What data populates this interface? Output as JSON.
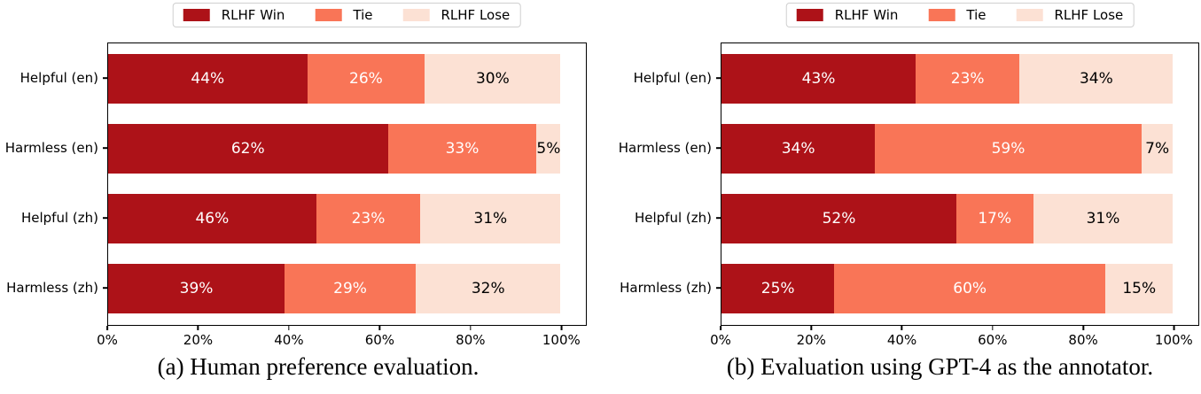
{
  "chart_data": [
    {
      "type": "bar",
      "orientation": "horizontal",
      "stacked": true,
      "title": "(a) Human preference evaluation.",
      "categories": [
        "Helpful (en)",
        "Harmless (en)",
        "Helpful (zh)",
        "Harmless (zh)"
      ],
      "series": [
        {
          "name": "RLHF Win",
          "color": "#ad1218",
          "label_color": "#ffffff",
          "values": [
            44,
            62,
            46,
            39
          ]
        },
        {
          "name": "Tie",
          "color": "#f97557",
          "label_color": "#ffffff",
          "values": [
            26,
            33,
            23,
            29
          ]
        },
        {
          "name": "RLHF Lose",
          "color": "#fce1d4",
          "label_color": "#000000",
          "values": [
            30,
            5,
            31,
            32
          ]
        }
      ],
      "value_label_suffix": "%",
      "x_ticks": [
        0,
        20,
        40,
        60,
        80,
        100
      ],
      "x_tick_labels": [
        "0%",
        "20%",
        "40%",
        "60%",
        "80%",
        "100%"
      ],
      "xlim": [
        0,
        105.6
      ],
      "grid": false,
      "legend_position": "top-center"
    },
    {
      "type": "bar",
      "orientation": "horizontal",
      "stacked": true,
      "title": "(b) Evaluation using GPT-4 as the annotator.",
      "categories": [
        "Helpful (en)",
        "Harmless (en)",
        "Helpful (zh)",
        "Harmless (zh)"
      ],
      "series": [
        {
          "name": "RLHF Win",
          "color": "#ad1218",
          "label_color": "#ffffff",
          "values": [
            43,
            34,
            52,
            25
          ]
        },
        {
          "name": "Tie",
          "color": "#f97557",
          "label_color": "#ffffff",
          "values": [
            23,
            59,
            17,
            60
          ]
        },
        {
          "name": "RLHF Lose",
          "color": "#fce1d4",
          "label_color": "#000000",
          "values": [
            34,
            7,
            31,
            15
          ]
        }
      ],
      "value_label_suffix": "%",
      "x_ticks": [
        0,
        20,
        40,
        60,
        80,
        100
      ],
      "x_tick_labels": [
        "0%",
        "20%",
        "40%",
        "60%",
        "80%",
        "100%"
      ],
      "xlim": [
        0,
        105.6
      ],
      "grid": false,
      "legend_position": "top-center"
    }
  ],
  "colors": {
    "rlhf_win": "#ad1218",
    "tie": "#f97557",
    "rlhf_lose": "#fce1d4",
    "spine": "#000000",
    "legend_border": "#cfcfcf"
  }
}
